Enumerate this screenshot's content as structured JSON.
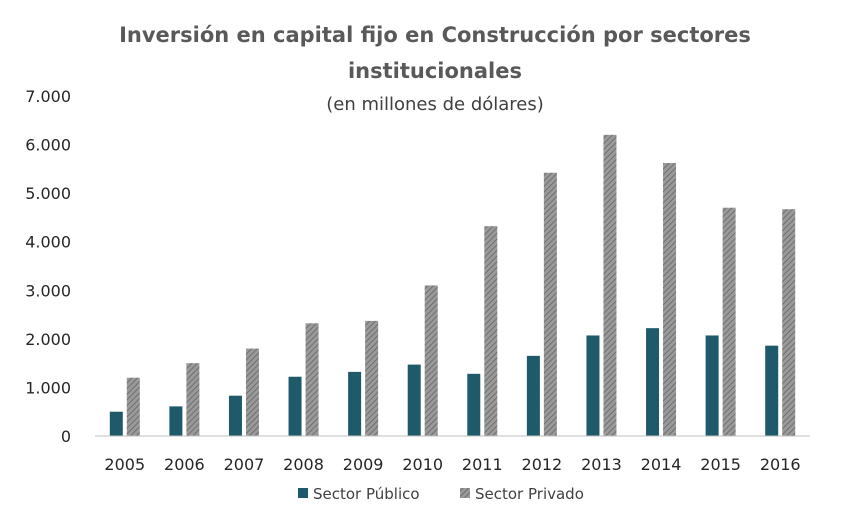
{
  "chart_data": {
    "type": "bar",
    "title_line1": "Inversión en capital fijo en Construcción por sectores",
    "title_line2": "institucionales",
    "subtitle": "(en millones de dólares)",
    "categories": [
      "2005",
      "2006",
      "2007",
      "2008",
      "2009",
      "2010",
      "2011",
      "2012",
      "2013",
      "2014",
      "2015",
      "2016"
    ],
    "series": [
      {
        "name": "Sector Público",
        "color": "#1F5A6B",
        "values": [
          500,
          610,
          830,
          1220,
          1320,
          1470,
          1280,
          1650,
          2070,
          2220,
          2070,
          1860
        ]
      },
      {
        "name": "Sector Privado",
        "color": "#808080",
        "pattern": "hatched",
        "values": [
          1200,
          1500,
          1800,
          2320,
          2370,
          3100,
          4320,
          5420,
          6200,
          5620,
          4700,
          4670
        ]
      }
    ],
    "y_ticks": [
      "0",
      "1.000",
      "2.000",
      "3.000",
      "4.000",
      "5.000",
      "6.000",
      "7.000"
    ],
    "ylim": [
      0,
      7000
    ],
    "grid": false,
    "legend_position": "bottom"
  }
}
